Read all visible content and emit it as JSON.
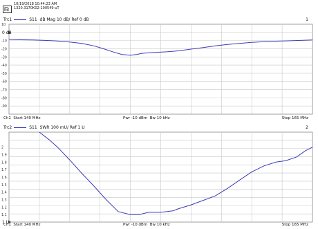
{
  "header": {
    "datetime": "10/19/2018 10:44:23 AM",
    "id": "1320.3170K02-100549-uT"
  },
  "trace1": {
    "id": "Trc1",
    "param": "S11",
    "format": "dB Mag",
    "scale": "10 dB/",
    "ref": "Ref 0 dB",
    "number": "1",
    "ref_marker": "0 dB",
    "y_ticks": [
      "10",
      "-10",
      "-20",
      "-30",
      "-40",
      "-50",
      "-60",
      "-70",
      "-80",
      "-90"
    ],
    "footer": {
      "ch": "Ch1",
      "start": "Start 140 MHz",
      "pwr": "Pwr -10 dBm",
      "bw": "Bw 10 kHz",
      "stop": "Stop 165 MHz"
    }
  },
  "trace2": {
    "id": "Trc2",
    "param": "S11",
    "format": "SWR",
    "scale": "100 mU/",
    "ref": "Ref 1 U",
    "number": "2",
    "ref_marker": "1 U",
    "y_ticks": [
      "2",
      "1.9",
      "1.8",
      "1.7",
      "1.6",
      "1.5",
      "1.4",
      "1.3",
      "1.2",
      "1.1"
    ],
    "footer": {
      "ch": "Ch1",
      "start": "Start 140 MHz",
      "pwr": "Pwr -10 dBm",
      "bw": "Bw 10 kHz",
      "stop": "Stop 165 MHz"
    }
  },
  "colors": {
    "trace": "#3b3bb8",
    "grid": "#c8c8c8",
    "frame": "#888888"
  },
  "chart_data": [
    {
      "type": "line",
      "x_unit": "MHz",
      "xlim": [
        140,
        165
      ],
      "ylim": [
        -100,
        10
      ],
      "grid": true,
      "x": [
        140,
        141,
        142,
        143,
        144,
        145,
        146,
        147,
        147.8,
        148.6,
        149.3,
        150,
        150.5,
        151,
        152,
        153,
        154,
        155,
        156,
        157,
        158,
        159,
        160,
        161,
        162,
        163,
        164,
        165
      ],
      "values": [
        -8.5,
        -9,
        -9.3,
        -9.8,
        -10.5,
        -11.8,
        -13.5,
        -16.5,
        -20,
        -24,
        -27,
        -28,
        -27,
        -25.5,
        -24.5,
        -23.8,
        -22.5,
        -20.5,
        -18.5,
        -16.5,
        -14.8,
        -13.5,
        -12.2,
        -11.3,
        -10.7,
        -10.3,
        -9.8,
        -9.3
      ]
    },
    {
      "type": "line",
      "x_unit": "MHz",
      "xlim": [
        140,
        165
      ],
      "ylim": [
        1,
        2.2
      ],
      "grid": true,
      "x": [
        142.5,
        143.3,
        144,
        145,
        146,
        147,
        148,
        149,
        150,
        150.7,
        151.5,
        152.5,
        153.5,
        154,
        155,
        156,
        157,
        158,
        159,
        160,
        161,
        162,
        162.8,
        163.7,
        164.4,
        165
      ],
      "values": [
        2.2,
        2.1,
        2.0,
        1.83,
        1.65,
        1.48,
        1.3,
        1.14,
        1.1,
        1.1,
        1.13,
        1.13,
        1.15,
        1.18,
        1.23,
        1.29,
        1.35,
        1.45,
        1.56,
        1.67,
        1.75,
        1.8,
        1.82,
        1.87,
        1.95,
        2.0
      ]
    }
  ]
}
